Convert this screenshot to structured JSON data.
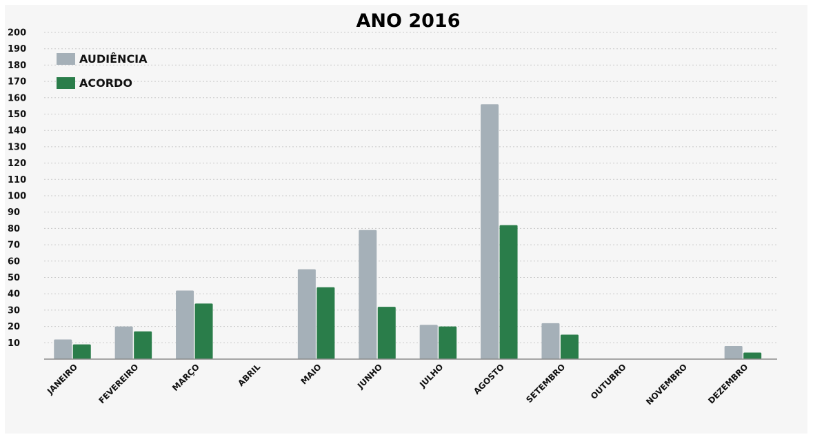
{
  "chart_data": {
    "type": "bar",
    "title": "ANO 2016",
    "xlabel": "",
    "ylabel": "",
    "ylim": [
      0,
      200
    ],
    "yticks": [
      10,
      20,
      30,
      40,
      50,
      60,
      70,
      80,
      90,
      100,
      110,
      120,
      130,
      140,
      150,
      160,
      170,
      180,
      190,
      200
    ],
    "grid": true,
    "legend_position": "top-left",
    "categories": [
      "JANEIRO",
      "FEVEREIRO",
      "MARÇO",
      "ABRIL",
      "MAIO",
      "JUNHO",
      "JULHO",
      "AGOSTO",
      "SETEMBRO",
      "OUTUBRO",
      "NOVEMBRO",
      "DEZEMBRO"
    ],
    "series": [
      {
        "name": "AUDIÊNCIA",
        "color": "#a5b0b8",
        "values": [
          12,
          20,
          42,
          0,
          55,
          79,
          21,
          156,
          22,
          0,
          0,
          8
        ]
      },
      {
        "name": "ACORDO",
        "color": "#2a7d4a",
        "values": [
          9,
          17,
          34,
          0,
          44,
          32,
          20,
          82,
          15,
          0,
          0,
          4
        ]
      }
    ]
  }
}
